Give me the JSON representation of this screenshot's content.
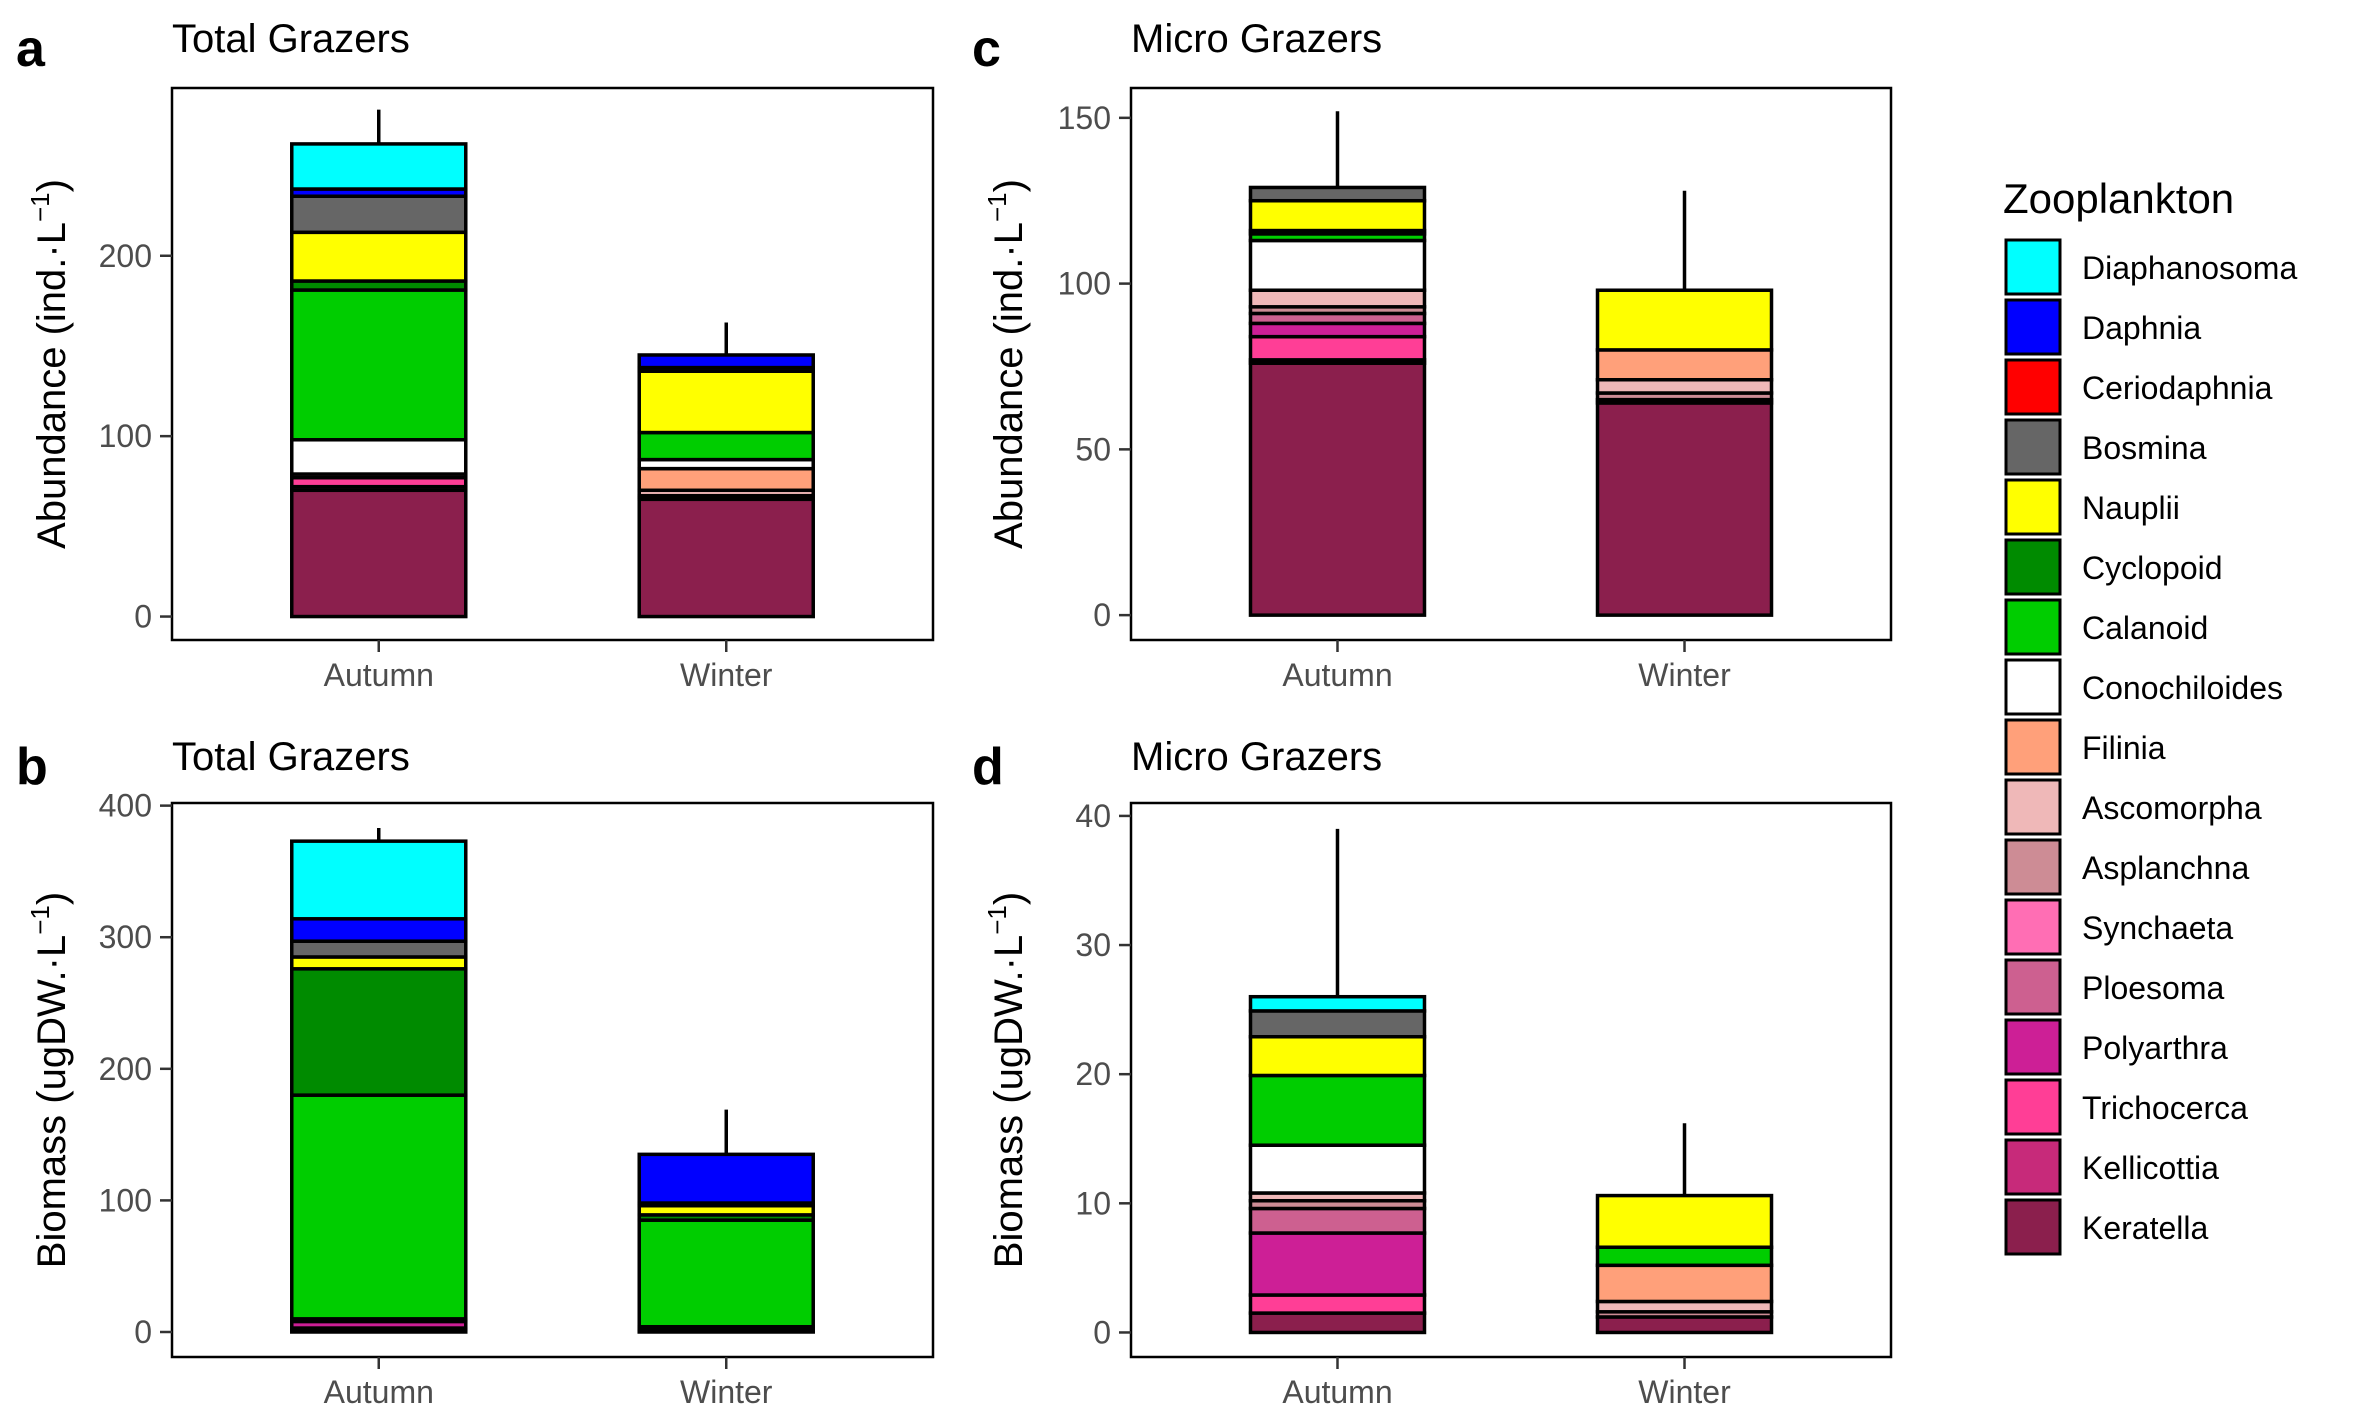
{
  "species": [
    {
      "name": "Diaphanosoma",
      "color": "#00ffff"
    },
    {
      "name": "Daphnia",
      "color": "#0000ff"
    },
    {
      "name": "Ceriodaphnia",
      "color": "#ff0000"
    },
    {
      "name": "Bosmina",
      "color": "#666666"
    },
    {
      "name": "Nauplii",
      "color": "#ffff00"
    },
    {
      "name": "Cyclopoid",
      "color": "#008b00"
    },
    {
      "name": "Calanoid",
      "color": "#00cd00"
    },
    {
      "name": "Conochiloides",
      "color": "#ffffff"
    },
    {
      "name": "Filinia",
      "color": "#ffa07a"
    },
    {
      "name": "Ascomorpha",
      "color": "#efb8b8"
    },
    {
      "name": "Asplanchna",
      "color": "#cd8c95"
    },
    {
      "name": "Synchaeta",
      "color": "#ff6eb4"
    },
    {
      "name": "Ploesoma",
      "color": "#cd6090"
    },
    {
      "name": "Polyarthra",
      "color": "#cd1f96"
    },
    {
      "name": "Trichocerca",
      "color": "#ff3e96"
    },
    {
      "name": "Kellicottia",
      "color": "#c72a7a"
    },
    {
      "name": "Keratella",
      "color": "#8b1f4d"
    }
  ],
  "legend": {
    "title": "Zooplankton"
  },
  "chart_data": [
    {
      "id": "a",
      "letter": "a",
      "type": "bar",
      "stacked": true,
      "title": "Total Grazers",
      "ylabel_main": "Abundance (ind.",
      "ylabel_unit": "L",
      "ylabel_sup": "−1",
      "ylabel_close": ")",
      "ylim": [
        -13,
        293
      ],
      "yticks": [
        0,
        100,
        200
      ],
      "ytick_labels": [
        "0",
        "100",
        "200"
      ],
      "categories": [
        "Autumn",
        "Winter"
      ],
      "error_top": [
        281,
        163
      ],
      "series": [
        {
          "name": "Keratella",
          "values": [
            70,
            65
          ]
        },
        {
          "name": "Kellicottia",
          "values": [
            2,
            1
          ]
        },
        {
          "name": "Trichocerca",
          "values": [
            5,
            0
          ]
        },
        {
          "name": "Polyarthra",
          "values": [
            0,
            0
          ]
        },
        {
          "name": "Ploesoma",
          "values": [
            0,
            0
          ]
        },
        {
          "name": "Synchaeta",
          "values": [
            0,
            0
          ]
        },
        {
          "name": "Asplanchna",
          "values": [
            2,
            1
          ]
        },
        {
          "name": "Ascomorpha",
          "values": [
            0,
            3
          ]
        },
        {
          "name": "Filinia",
          "values": [
            0,
            12
          ]
        },
        {
          "name": "Conochiloides",
          "values": [
            19,
            5
          ]
        },
        {
          "name": "Calanoid",
          "values": [
            83,
            15
          ]
        },
        {
          "name": "Cyclopoid",
          "values": [
            5,
            0
          ]
        },
        {
          "name": "Nauplii",
          "values": [
            27,
            34
          ]
        },
        {
          "name": "Bosmina",
          "values": [
            20,
            2
          ]
        },
        {
          "name": "Ceriodaphnia",
          "values": [
            0,
            0
          ]
        },
        {
          "name": "Daphnia",
          "values": [
            4,
            7
          ]
        },
        {
          "name": "Diaphanosoma",
          "values": [
            25,
            0
          ]
        }
      ]
    },
    {
      "id": "b",
      "letter": "b",
      "type": "bar",
      "stacked": true,
      "title": "Total Grazers",
      "ylabel_main": "Biomass (ugDW.",
      "ylabel_unit": "L",
      "ylabel_sup": "−1",
      "ylabel_close": ")",
      "ylim": [
        -19,
        402
      ],
      "yticks": [
        0,
        100,
        200,
        300,
        400
      ],
      "ytick_labels": [
        "0",
        "100",
        "200",
        "300",
        "400"
      ],
      "categories": [
        "Autumn",
        "Winter"
      ],
      "error_top": [
        383,
        169
      ],
      "series": [
        {
          "name": "Keratella",
          "values": [
            2,
            1
          ]
        },
        {
          "name": "Kellicottia",
          "values": [
            1,
            0
          ]
        },
        {
          "name": "Trichocerca",
          "values": [
            0,
            0
          ]
        },
        {
          "name": "Polyarthra",
          "values": [
            5,
            0
          ]
        },
        {
          "name": "Ploesoma",
          "values": [
            1,
            0
          ]
        },
        {
          "name": "Synchaeta",
          "values": [
            0,
            0
          ]
        },
        {
          "name": "Asplanchna",
          "values": [
            1,
            0
          ]
        },
        {
          "name": "Ascomorpha",
          "values": [
            0,
            1
          ]
        },
        {
          "name": "Filinia",
          "values": [
            0,
            2
          ]
        },
        {
          "name": "Conochiloides",
          "values": [
            0,
            0
          ]
        },
        {
          "name": "Calanoid",
          "values": [
            170,
            81
          ]
        },
        {
          "name": "Cyclopoid",
          "values": [
            96,
            4
          ]
        },
        {
          "name": "Nauplii",
          "values": [
            9,
            7
          ]
        },
        {
          "name": "Bosmina",
          "values": [
            12,
            2
          ]
        },
        {
          "name": "Ceriodaphnia",
          "values": [
            0,
            0
          ]
        },
        {
          "name": "Daphnia",
          "values": [
            17,
            37
          ]
        },
        {
          "name": "Diaphanosoma",
          "values": [
            59,
            0
          ]
        }
      ]
    },
    {
      "id": "c",
      "letter": "c",
      "type": "bar",
      "stacked": true,
      "title": "Micro Grazers",
      "ylabel_main": "Abundance (ind.",
      "ylabel_unit": "L",
      "ylabel_sup": "−1",
      "ylabel_close": ")",
      "ylim": [
        -7.5,
        159
      ],
      "yticks": [
        0,
        50,
        100,
        150
      ],
      "ytick_labels": [
        "0",
        "50",
        "100",
        "150"
      ],
      "categories": [
        "Autumn",
        "Winter"
      ],
      "error_top": [
        152,
        128
      ],
      "series": [
        {
          "name": "Keratella",
          "values": [
            76,
            64
          ]
        },
        {
          "name": "Kellicottia",
          "values": [
            1,
            1
          ]
        },
        {
          "name": "Trichocerca",
          "values": [
            7,
            0
          ]
        },
        {
          "name": "Polyarthra",
          "values": [
            4,
            0
          ]
        },
        {
          "name": "Ploesoma",
          "values": [
            3,
            0
          ]
        },
        {
          "name": "Synchaeta",
          "values": [
            0,
            0
          ]
        },
        {
          "name": "Asplanchna",
          "values": [
            2,
            2
          ]
        },
        {
          "name": "Ascomorpha",
          "values": [
            5,
            4
          ]
        },
        {
          "name": "Filinia",
          "values": [
            0,
            9
          ]
        },
        {
          "name": "Conochiloides",
          "values": [
            15,
            0
          ]
        },
        {
          "name": "Calanoid",
          "values": [
            2,
            0
          ]
        },
        {
          "name": "Cyclopoid",
          "values": [
            1,
            0
          ]
        },
        {
          "name": "Nauplii",
          "values": [
            9,
            18
          ]
        },
        {
          "name": "Bosmina",
          "values": [
            4,
            0
          ]
        },
        {
          "name": "Ceriodaphnia",
          "values": [
            0,
            0
          ]
        },
        {
          "name": "Daphnia",
          "values": [
            0,
            0
          ]
        },
        {
          "name": "Diaphanosoma",
          "values": [
            0,
            0
          ]
        }
      ]
    },
    {
      "id": "d",
      "letter": "d",
      "type": "bar",
      "stacked": true,
      "title": "Micro Grazers",
      "ylabel_main": "Biomass (ugDW.",
      "ylabel_unit": "L",
      "ylabel_sup": "−1",
      "ylabel_close": ")",
      "ylim": [
        -1.9,
        41
      ],
      "yticks": [
        0,
        10,
        20,
        30,
        40
      ],
      "ytick_labels": [
        "0",
        "10",
        "20",
        "30",
        "40"
      ],
      "categories": [
        "Autumn",
        "Winter"
      ],
      "error_top": [
        39,
        16.2
      ],
      "series": [
        {
          "name": "Keratella",
          "values": [
            1.5,
            1.2
          ]
        },
        {
          "name": "Kellicottia",
          "values": [
            0,
            0
          ]
        },
        {
          "name": "Trichocerca",
          "values": [
            1.4,
            0
          ]
        },
        {
          "name": "Polyarthra",
          "values": [
            4.8,
            0
          ]
        },
        {
          "name": "Ploesoma",
          "values": [
            1.9,
            0
          ]
        },
        {
          "name": "Synchaeta",
          "values": [
            0,
            0
          ]
        },
        {
          "name": "Asplanchna",
          "values": [
            0.6,
            0.4
          ]
        },
        {
          "name": "Ascomorpha",
          "values": [
            0.6,
            0.8
          ]
        },
        {
          "name": "Filinia",
          "values": [
            0,
            2.8
          ]
        },
        {
          "name": "Conochiloides",
          "values": [
            3.7,
            0
          ]
        },
        {
          "name": "Calanoid",
          "values": [
            5.4,
            1.4
          ]
        },
        {
          "name": "Cyclopoid",
          "values": [
            0,
            0
          ]
        },
        {
          "name": "Nauplii",
          "values": [
            3,
            4
          ]
        },
        {
          "name": "Bosmina",
          "values": [
            2,
            0
          ]
        },
        {
          "name": "Ceriodaphnia",
          "values": [
            0,
            0
          ]
        },
        {
          "name": "Daphnia",
          "values": [
            0,
            0
          ]
        },
        {
          "name": "Diaphanosoma",
          "values": [
            1.1,
            0
          ]
        }
      ]
    }
  ]
}
